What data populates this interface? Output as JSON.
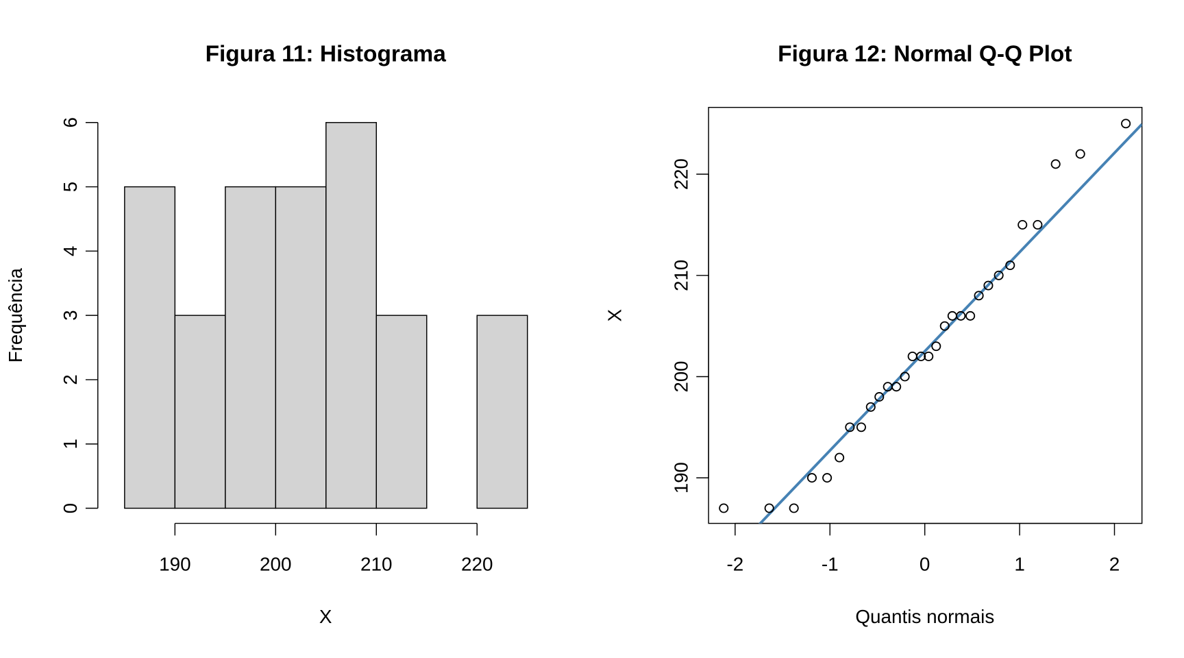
{
  "chart_data": [
    {
      "type": "histogram",
      "title": "Figura 11: Histograma",
      "xlabel": "X",
      "ylabel": "Frequência",
      "bins": [
        185,
        190,
        195,
        200,
        205,
        210,
        215,
        220,
        225
      ],
      "values": [
        5,
        3,
        5,
        5,
        6,
        3,
        0,
        3
      ],
      "color": "#d3d3d3",
      "xlim": [
        185,
        225
      ],
      "xticks": [
        190,
        200,
        210,
        220
      ],
      "ylim": [
        0,
        6
      ],
      "yticks": [
        0,
        1,
        2,
        3,
        4,
        5,
        6
      ]
    },
    {
      "type": "scatter",
      "title": "Figura 12: Normal Q-Q Plot",
      "xlabel": "Quantis normais",
      "ylabel": "X",
      "x": [
        -2.12,
        -1.64,
        -1.38,
        -1.19,
        -1.03,
        -0.9,
        -0.79,
        -0.67,
        -0.57,
        -0.48,
        -0.39,
        -0.3,
        -0.21,
        -0.13,
        -0.04,
        0.04,
        0.12,
        0.21,
        0.29,
        0.38,
        0.48,
        0.57,
        0.67,
        0.78,
        0.9,
        1.03,
        1.19,
        1.38,
        1.64,
        2.12
      ],
      "values": [
        187,
        187,
        187,
        190,
        190,
        192,
        195,
        195,
        197,
        198,
        199,
        199,
        200,
        202,
        202,
        202,
        203,
        205,
        206,
        206,
        206,
        208,
        209,
        210,
        211,
        215,
        215,
        221,
        222,
        225
      ],
      "reference_line": {
        "intercept": 202.5,
        "slope": 9.8,
        "color": "#4682b4"
      },
      "xlim": [
        -2.28,
        2.29
      ],
      "xticks": [
        -2,
        -1,
        0,
        1,
        2
      ],
      "ylim": [
        185.5,
        226.6
      ],
      "yticks": [
        190,
        200,
        210,
        220
      ]
    }
  ]
}
